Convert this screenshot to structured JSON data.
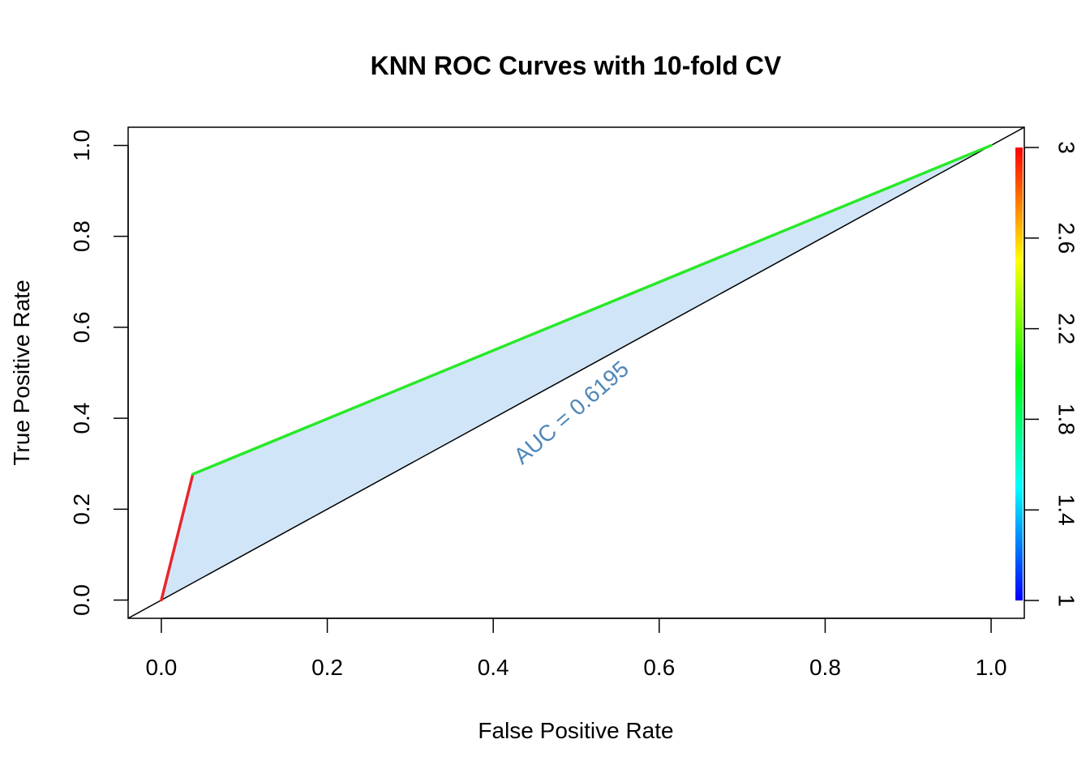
{
  "chart_data": {
    "type": "line",
    "title": "KNN ROC Curves with 10-fold CV",
    "xlabel": "False Positive Rate",
    "ylabel": "True Positive Rate",
    "xlim": [
      -0.04,
      1.04
    ],
    "ylim": [
      -0.04,
      1.04
    ],
    "x_ticks": [
      "0.0",
      "0.2",
      "0.4",
      "0.6",
      "0.8",
      "1.0"
    ],
    "y_ticks": [
      "0.0",
      "0.2",
      "0.4",
      "0.6",
      "0.8",
      "1.0"
    ],
    "grid": false,
    "roc_curve": {
      "x": [
        0.0,
        0.038,
        1.0
      ],
      "y": [
        0.0,
        0.277,
        1.0
      ],
      "cutoff": [
        3,
        2,
        1
      ],
      "fill_color": "#d0e6f8"
    },
    "diagonal": {
      "x": [
        -0.04,
        1.04
      ],
      "y": [
        -0.04,
        1.04
      ],
      "color": "#000000"
    },
    "annotation": {
      "text": "AUC = 0.6195",
      "x": 0.5,
      "y": 0.4,
      "angle_deg": 45,
      "color": "#4f86b8"
    },
    "colorbar": {
      "range": [
        1,
        3
      ],
      "ticks": [
        "1",
        "1.4",
        "1.8",
        "2.2",
        "2.6",
        "3"
      ],
      "tick_values": [
        1,
        1.4,
        1.8,
        2.2,
        2.6,
        3
      ],
      "colors": [
        "#0000ff",
        "#00ffff",
        "#00ff00",
        "#ffff00",
        "#ff0000"
      ]
    }
  }
}
